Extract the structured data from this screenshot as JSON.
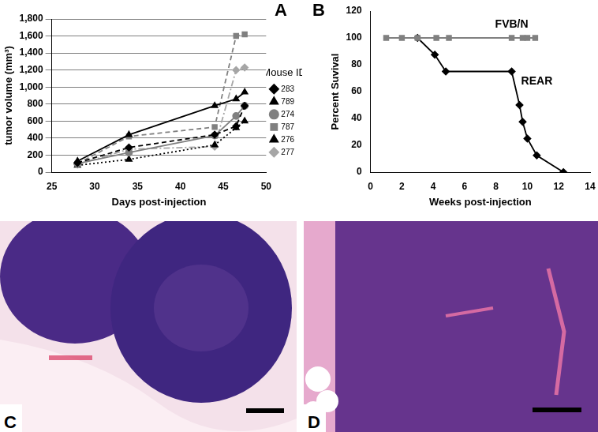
{
  "panels": [
    "A",
    "B",
    "C",
    "D"
  ],
  "chart_data": [
    {
      "type": "line",
      "x_label": "Days post-injection",
      "y_label": "tumor volume (mm³)",
      "x": [
        28,
        34,
        44,
        46.5,
        47.5
      ],
      "xlim": [
        25,
        50
      ],
      "xticks": [
        25,
        30,
        35,
        40,
        45,
        50
      ],
      "ylim": [
        0,
        1800
      ],
      "yticks": [
        0,
        200,
        400,
        600,
        800,
        1000,
        1200,
        1400,
        1600,
        1800
      ],
      "grid": true,
      "legend": "right",
      "legend_title": "Mouse ID",
      "series": [
        {
          "name": "283",
          "color": "#000000",
          "marker": "diamond",
          "line_style": "dashed",
          "values": [
            110,
            290,
            440,
            540,
            780
          ]
        },
        {
          "name": "789",
          "color": "#000000",
          "marker": "triangle",
          "line_style": "solid",
          "values": [
            130,
            440,
            780,
            860,
            940
          ]
        },
        {
          "name": "274",
          "color": "#808080",
          "marker": "circle",
          "line_style": "solid",
          "values": [
            100,
            230,
            430,
            660,
            780
          ]
        },
        {
          "name": "787",
          "color": "#808080",
          "marker": "square",
          "line_style": "dashed",
          "values": [
            100,
            420,
            530,
            1600,
            1620
          ]
        },
        {
          "name": "276",
          "color": "#000000",
          "marker": "triangle",
          "line_style": "dotted",
          "values": [
            80,
            150,
            320,
            520,
            600
          ]
        },
        {
          "name": "277",
          "color": "#a6a6a6",
          "marker": "diamond",
          "line_style": "dashdot",
          "values": [
            90,
            270,
            300,
            1200,
            1230
          ]
        }
      ]
    },
    {
      "type": "line",
      "x_label": "Weeks post-injection",
      "y_label": "Percent Suvival",
      "xlim": [
        0,
        14
      ],
      "xticks": [
        0,
        2,
        4,
        6,
        8,
        10,
        12,
        14
      ],
      "ylim": [
        0,
        120
      ],
      "yticks": [
        0,
        20,
        40,
        60,
        80,
        100,
        120
      ],
      "grid": false,
      "series": [
        {
          "name": "FVB/N",
          "color": "#808080",
          "marker": "square",
          "line_style": "solid",
          "x": [
            1,
            2,
            3,
            4.2,
            5,
            9,
            9.7,
            10,
            10.5
          ],
          "values": [
            100,
            100,
            100,
            100,
            100,
            100,
            100,
            100,
            100
          ]
        },
        {
          "name": "REAR",
          "color": "#000000",
          "marker": "diamond",
          "line_style": "solid",
          "x": [
            3,
            4.1,
            4.8,
            9,
            9.5,
            9.7,
            10,
            10.6,
            12.3
          ],
          "values": [
            100,
            87.5,
            75,
            75,
            50,
            37.5,
            25,
            12.5,
            0
          ]
        }
      ]
    }
  ]
}
